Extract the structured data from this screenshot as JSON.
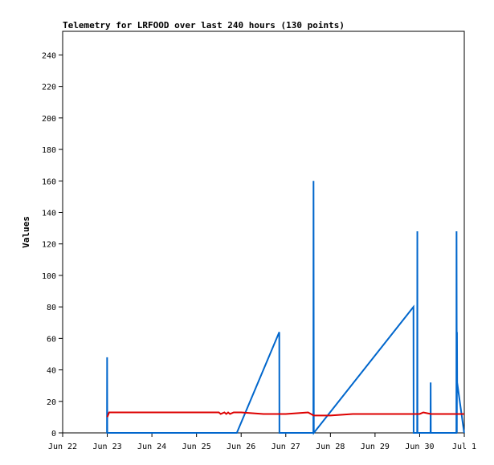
{
  "chart_data": {
    "type": "line",
    "title": "Telemetry for LRFOOD over last 240 hours (130 points)",
    "xlabel": "",
    "ylabel": "Values",
    "grid": false,
    "legend": "none",
    "xlim": [
      "2023-06-22T00:00",
      "2023-07-01T00:00"
    ],
    "ylim": [
      0,
      255
    ],
    "x_ticks": [
      "Jun 22",
      "Jun 23",
      "Jun 24",
      "Jun 25",
      "Jun 26",
      "Jun 27",
      "Jun 28",
      "Jun 29",
      "Jun 30",
      "Jul 1"
    ],
    "y_ticks": [
      0,
      20,
      40,
      60,
      80,
      100,
      120,
      140,
      160,
      180,
      200,
      220,
      240
    ],
    "series": [
      {
        "color": "#0066cc",
        "points": [
          [
            "2023-06-22T23:50",
            0
          ],
          [
            "2023-06-22T23:55",
            48
          ],
          [
            "2023-06-23T00:00",
            0
          ],
          [
            "2023-06-25T21:40",
            0
          ],
          [
            "2023-06-26T20:30",
            64
          ],
          [
            "2023-06-26T20:35",
            0
          ],
          [
            "2023-06-27T14:50",
            0
          ],
          [
            "2023-06-27T14:55",
            160
          ],
          [
            "2023-06-27T15:05",
            0
          ],
          [
            "2023-06-29T20:40",
            80
          ],
          [
            "2023-06-29T20:45",
            0
          ],
          [
            "2023-06-29T22:40",
            0
          ],
          [
            "2023-06-29T22:45",
            128
          ],
          [
            "2023-06-29T22:50",
            0
          ],
          [
            "2023-06-30T05:50",
            0
          ],
          [
            "2023-06-30T05:55",
            32
          ],
          [
            "2023-06-30T06:00",
            0
          ],
          [
            "2023-06-30T19:45",
            0
          ],
          [
            "2023-06-30T19:50",
            128
          ],
          [
            "2023-06-30T20:00",
            0
          ],
          [
            "2023-06-30T20:05",
            64
          ],
          [
            "2023-06-30T20:10",
            32
          ],
          [
            "2023-06-30T23:55",
            0
          ]
        ]
      },
      {
        "color": "#dd0000",
        "points": [
          [
            "2023-06-23T00:00",
            10
          ],
          [
            "2023-06-23T01:00",
            13
          ],
          [
            "2023-06-24T00:00",
            13
          ],
          [
            "2023-06-25T00:00",
            13
          ],
          [
            "2023-06-25T12:00",
            13
          ],
          [
            "2023-06-25T13:00",
            12
          ],
          [
            "2023-06-25T15:00",
            13
          ],
          [
            "2023-06-25T16:00",
            12
          ],
          [
            "2023-06-25T17:00",
            13
          ],
          [
            "2023-06-25T18:00",
            12
          ],
          [
            "2023-06-25T20:00",
            13
          ],
          [
            "2023-06-26T00:00",
            13
          ],
          [
            "2023-06-26T12:00",
            12
          ],
          [
            "2023-06-27T00:00",
            12
          ],
          [
            "2023-06-27T12:00",
            13
          ],
          [
            "2023-06-27T15:00",
            11
          ],
          [
            "2023-06-28T00:00",
            11
          ],
          [
            "2023-06-28T12:00",
            12
          ],
          [
            "2023-06-29T00:00",
            12
          ],
          [
            "2023-06-29T12:00",
            12
          ],
          [
            "2023-06-30T00:00",
            12
          ],
          [
            "2023-06-30T02:00",
            13
          ],
          [
            "2023-06-30T06:00",
            12
          ],
          [
            "2023-06-30T12:00",
            12
          ],
          [
            "2023-06-30T23:59",
            12
          ]
        ]
      }
    ]
  }
}
